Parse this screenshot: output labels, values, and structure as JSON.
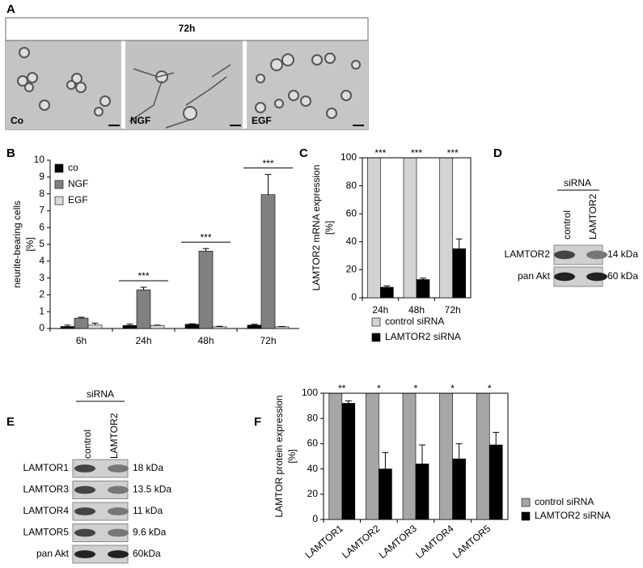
{
  "panel_labels": [
    "A",
    "B",
    "C",
    "D",
    "E",
    "F"
  ],
  "panel_a": {
    "title": "72h",
    "images": [
      "Co",
      "NGF",
      "EGF"
    ]
  },
  "chart_data": [
    {
      "type": "bar",
      "ylabel": [
        "neurite-bearing cells",
        "[%]"
      ],
      "categories": [
        "6h",
        "24h",
        "48h",
        "72h"
      ],
      "series": [
        {
          "name": "co",
          "color": "#000000",
          "values": [
            0.12,
            0.18,
            0.25,
            0.2
          ],
          "errors": [
            0.08,
            0.08,
            0.03,
            0.05
          ]
        },
        {
          "name": "NGF",
          "color": "#808080",
          "values": [
            0.62,
            2.3,
            4.6,
            7.95
          ],
          "errors": [
            0.05,
            0.15,
            0.15,
            1.2
          ]
        },
        {
          "name": "EGF",
          "color": "#d9d9d9",
          "values": [
            0.2,
            0.18,
            0.1,
            0.1
          ],
          "errors": [
            0.12,
            0.02,
            0.03,
            0.02
          ]
        }
      ],
      "annotations": [
        null,
        "***",
        "***",
        "***"
      ],
      "ylim": [
        0,
        10
      ],
      "yticks": [
        0,
        1,
        2,
        3,
        4,
        5,
        6,
        7,
        8,
        9,
        10
      ],
      "legend": "upper left",
      "box": false
    },
    {
      "type": "bar",
      "ylabel": [
        "LAMTOR2 mRNA expression",
        "[%]"
      ],
      "categories": [
        "24h",
        "48h",
        "72h"
      ],
      "series": [
        {
          "name": "control siRNA",
          "color": "#d3d3d3",
          "values": [
            100,
            100,
            100
          ],
          "errors": [
            0,
            0,
            0
          ]
        },
        {
          "name": "LAMTOR2 siRNA",
          "color": "#000000",
          "values": [
            7.5,
            13,
            35
          ],
          "errors": [
            1,
            1,
            7
          ]
        }
      ],
      "annotations": [
        "***",
        "***",
        "***"
      ],
      "ylim": [
        0,
        100
      ],
      "yticks": [
        0,
        20,
        40,
        60,
        80,
        100
      ],
      "legend": "below",
      "box": true
    },
    {
      "type": "bar",
      "ylabel": [
        "LAMTOR protein expression",
        "[%]"
      ],
      "categories": [
        "LAMTOR1",
        "LAMTOR2",
        "LAMTOR3",
        "LAMTOR4",
        "LAMTOR5"
      ],
      "series": [
        {
          "name": "control siRNA",
          "color": "#a6a6a6",
          "values": [
            100,
            100,
            100,
            100,
            100
          ],
          "errors": [
            0,
            0,
            0,
            0,
            0
          ]
        },
        {
          "name": "LAMTOR2 siRNA",
          "color": "#000000",
          "values": [
            92,
            40,
            44,
            48,
            59
          ],
          "errors": [
            2,
            13,
            15,
            12,
            10
          ]
        }
      ],
      "annotations": [
        "**",
        "*",
        "*",
        "*",
        "*"
      ],
      "ylim": [
        0,
        100
      ],
      "yticks": [
        0,
        20,
        40,
        60,
        80,
        100
      ],
      "legend": "right",
      "box": true
    }
  ],
  "blot_d": {
    "header": "siRNA",
    "lanes": [
      "control",
      "LAMTOR2"
    ],
    "rows": [
      {
        "label": "LAMTOR2",
        "size": "14 kDa"
      },
      {
        "label": "pan Akt",
        "size": "60 kDa"
      }
    ]
  },
  "blot_e": {
    "header": "siRNA",
    "lanes": [
      "control",
      "LAMTOR2"
    ],
    "rows": [
      {
        "label": "LAMTOR1",
        "size": "18 kDa"
      },
      {
        "label": "LAMTOR3",
        "size": "13.5 kDa"
      },
      {
        "label": "LAMTOR4",
        "size": "11 kDa"
      },
      {
        "label": "LAMTOR5",
        "size": "9.6 kDa"
      },
      {
        "label": "pan Akt",
        "size": "60kDa"
      }
    ]
  }
}
